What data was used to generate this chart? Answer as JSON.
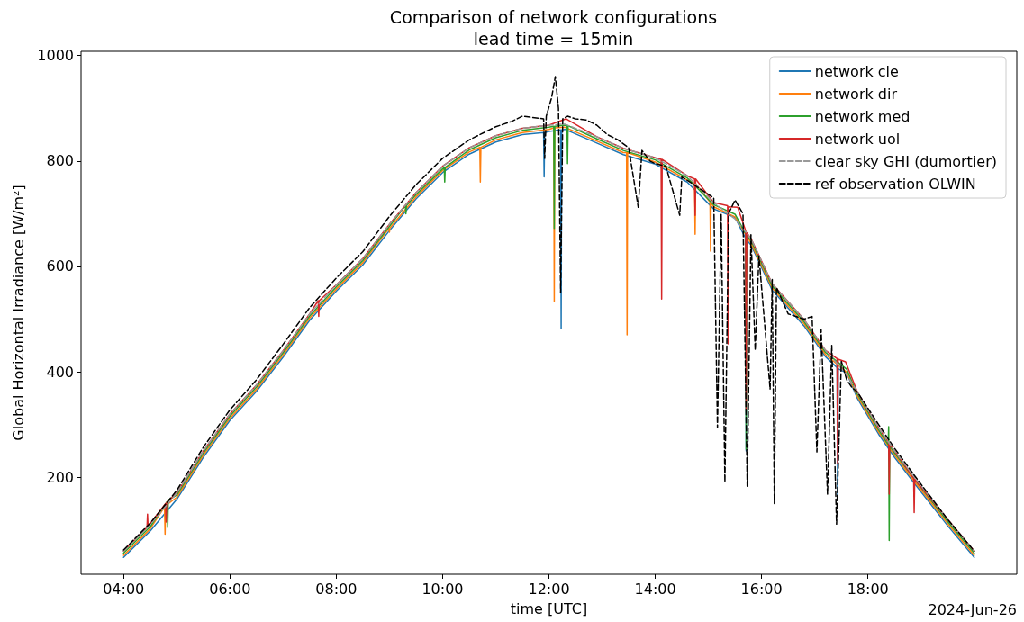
{
  "chart_data": {
    "type": "line",
    "title": "Comparison of network configurations",
    "subtitle": "lead time = 15min",
    "xlabel": "time [UTC]",
    "ylabel": "Global Horizontal Irradiance [W/m²]",
    "annotations": [
      "2024-Jun-26"
    ],
    "xlim": [
      3.2,
      20.8
    ],
    "xticks": [
      {
        "value": 4,
        "label": "04:00"
      },
      {
        "value": 6,
        "label": "06:00"
      },
      {
        "value": 8,
        "label": "08:00"
      },
      {
        "value": 10,
        "label": "10:00"
      },
      {
        "value": 12,
        "label": "12:00"
      },
      {
        "value": 14,
        "label": "14:00"
      },
      {
        "value": 16,
        "label": "16:00"
      },
      {
        "value": 18,
        "label": "18:00"
      }
    ],
    "ylim": [
      16,
      1008
    ],
    "yticks": [
      200,
      400,
      600,
      800,
      1000
    ],
    "grid": false,
    "legend": "top right",
    "marker": "none",
    "series": [
      {
        "name": "network cle",
        "color": "#1f77b4",
        "line_style": "solid",
        "x": [
          4.0,
          4.5,
          5.0,
          5.5,
          6.0,
          6.5,
          7.0,
          7.5,
          8.0,
          8.5,
          9.0,
          9.5,
          10.0,
          10.5,
          11.0,
          11.5,
          11.9,
          11.91,
          11.92,
          12.0,
          12.22,
          12.23,
          12.24,
          12.3,
          12.9,
          13.4,
          14.0,
          14.6,
          15.1,
          15.5,
          15.7,
          15.71,
          15.72,
          15.8,
          16.2,
          16.8,
          17.2,
          17.42,
          17.43,
          17.44,
          17.6,
          17.8,
          18.2,
          18.5,
          18.9,
          19.5,
          20.0
        ],
        "values": [
          48,
          98,
          158,
          238,
          308,
          363,
          428,
          498,
          553,
          603,
          668,
          728,
          778,
          813,
          836,
          850,
          854,
          770,
          854,
          856,
          859,
          482,
          859,
          860,
          834,
          812,
          794,
          760,
          709,
          693,
          653,
          250,
          650,
          641,
          555,
          487,
          429,
          408,
          162,
          406,
          398,
          350,
          282,
          238,
          185,
          108,
          48
        ]
      },
      {
        "name": "network dir",
        "color": "#ff7f0e",
        "line_style": "solid",
        "x": [
          4.0,
          4.5,
          4.77,
          4.78,
          4.79,
          5.0,
          5.5,
          6.0,
          6.5,
          7.0,
          7.5,
          8.0,
          8.5,
          8.99,
          9.0,
          9.01,
          9.5,
          10.0,
          10.5,
          10.7,
          10.71,
          10.72,
          11.0,
          11.5,
          12.0,
          12.09,
          12.1,
          12.11,
          12.3,
          12.9,
          13.4,
          13.46,
          13.47,
          13.48,
          14.0,
          14.6,
          14.74,
          14.75,
          14.76,
          15.03,
          15.04,
          15.05,
          15.1,
          15.5,
          15.8,
          16.2,
          16.8,
          17.2,
          17.6,
          17.8,
          18.2,
          18.5,
          18.9,
          19.5,
          20.0
        ],
        "values": [
          52,
          102,
          144,
          92,
          146,
          162,
          242,
          312,
          367,
          432,
          502,
          557,
          607,
          672,
          665,
          673,
          732,
          782,
          817,
          826,
          760,
          826,
          840,
          854,
          860,
          863,
          533,
          863,
          864,
          838,
          816,
          816,
          470,
          816,
          798,
          764,
          758,
          661,
          757,
          722,
          629,
          721,
          713,
          694,
          644,
          559,
          491,
          433,
          399,
          354,
          286,
          242,
          189,
          112,
          52
        ]
      },
      {
        "name": "network med",
        "color": "#2ca02c",
        "line_style": "solid",
        "x": [
          4.0,
          4.5,
          4.82,
          4.83,
          4.84,
          5.0,
          5.5,
          6.0,
          6.5,
          7.0,
          7.5,
          8.0,
          8.5,
          9.0,
          9.3,
          9.31,
          9.32,
          9.5,
          10.03,
          10.04,
          10.05,
          10.5,
          11.0,
          11.5,
          12.0,
          12.09,
          12.1,
          12.11,
          12.3,
          12.34,
          12.35,
          12.36,
          12.9,
          13.4,
          14.0,
          14.6,
          15.1,
          15.5,
          15.7,
          15.71,
          15.72,
          15.8,
          16.2,
          16.8,
          17.2,
          17.6,
          17.8,
          18.2,
          18.38,
          18.39,
          18.4,
          18.41,
          18.5,
          18.9,
          19.5,
          20.0
        ],
        "values": [
          56,
          106,
          154,
          105,
          157,
          166,
          246,
          316,
          371,
          436,
          506,
          561,
          611,
          676,
          715,
          700,
          715,
          736,
          788,
          760,
          788,
          821,
          844,
          858,
          864,
          866,
          672,
          866,
          868,
          867,
          795,
          867,
          842,
          820,
          802,
          768,
          717,
          699,
          662,
          253,
          659,
          649,
          563,
          495,
          437,
          405,
          358,
          290,
          262,
          296,
          80,
          259,
          246,
          193,
          116,
          56
        ]
      },
      {
        "name": "network uol",
        "color": "#d62728",
        "line_style": "solid",
        "x": [
          4.0,
          4.44,
          4.45,
          4.46,
          4.79,
          4.8,
          4.81,
          5.0,
          5.5,
          6.0,
          6.5,
          7.0,
          7.5,
          7.66,
          7.67,
          7.68,
          8.0,
          8.5,
          9.0,
          9.5,
          10.0,
          10.5,
          11.0,
          11.5,
          12.0,
          12.32,
          12.9,
          13.4,
          14.0,
          14.11,
          14.12,
          14.13,
          14.6,
          14.74,
          14.75,
          14.76,
          15.1,
          15.36,
          15.37,
          15.38,
          15.55,
          15.7,
          15.71,
          15.72,
          15.8,
          16.2,
          16.8,
          17.2,
          17.42,
          17.43,
          17.44,
          17.58,
          17.8,
          18.2,
          18.39,
          18.4,
          18.41,
          18.86,
          18.87,
          18.88,
          19.5,
          20.0
        ],
        "values": [
          60,
          105,
          130,
          107,
          150,
          115,
          152,
          170,
          250,
          320,
          375,
          440,
          510,
          535,
          505,
          535,
          565,
          615,
          680,
          740,
          790,
          825,
          848,
          862,
          868,
          880,
          846,
          824,
          806,
          803,
          538,
          803,
          772,
          766,
          697,
          766,
          721,
          715,
          453,
          713,
          712,
          668,
          328,
          664,
          653,
          567,
          499,
          441,
          425,
          226,
          424,
          419,
          362,
          294,
          265,
          168,
          263,
          198,
          133,
          196,
          120,
          60
        ]
      },
      {
        "name": "clear sky GHI (dumortier)",
        "color": "#999999",
        "line_style": "dashed",
        "x": [
          4.0,
          4.5,
          5.0,
          5.5,
          6.0,
          6.5,
          7.0,
          7.5,
          8.0,
          8.5,
          9.0,
          9.5,
          10.0,
          10.5,
          11.0,
          11.5,
          12.0,
          12.3,
          12.9,
          13.4,
          14.0,
          14.6,
          15.1,
          15.5,
          15.8,
          16.2,
          16.8,
          17.2,
          17.6,
          17.8,
          18.2,
          18.5,
          18.9,
          19.5,
          20.0
        ],
        "values": [
          60,
          110,
          170,
          250,
          320,
          375,
          440,
          510,
          565,
          615,
          680,
          740,
          790,
          825,
          848,
          862,
          868,
          870,
          846,
          824,
          806,
          772,
          721,
          690,
          653,
          567,
          499,
          441,
          395,
          362,
          294,
          250,
          197,
          120,
          60
        ]
      },
      {
        "name": "ref observation OLWIN",
        "color": "#000000",
        "line_style": "dashed",
        "x": [
          4.0,
          4.5,
          5.0,
          5.5,
          6.0,
          6.5,
          7.0,
          7.5,
          8.0,
          8.5,
          9.0,
          9.5,
          10.0,
          10.5,
          11.0,
          11.3,
          11.5,
          11.9,
          11.92,
          11.95,
          12.05,
          12.12,
          12.18,
          12.22,
          12.26,
          12.35,
          12.5,
          12.7,
          12.9,
          13.1,
          13.3,
          13.5,
          13.68,
          13.75,
          13.9,
          14.0,
          14.2,
          14.46,
          14.5,
          14.8,
          15.1,
          15.17,
          15.24,
          15.31,
          15.38,
          15.5,
          15.65,
          15.73,
          15.8,
          15.88,
          15.95,
          16.16,
          16.2,
          16.24,
          16.28,
          16.5,
          16.8,
          16.95,
          17.04,
          17.12,
          17.24,
          17.32,
          17.41,
          17.5,
          17.6,
          17.7,
          17.8,
          18.2,
          18.5,
          18.9,
          19.5,
          20.0
        ],
        "values": [
          62,
          113,
          175,
          257,
          328,
          385,
          452,
          522,
          578,
          628,
          695,
          755,
          805,
          840,
          865,
          875,
          885,
          880,
          805,
          885,
          920,
          960,
          900,
          550,
          880,
          885,
          880,
          878,
          868,
          850,
          840,
          825,
          712,
          820,
          800,
          795,
          790,
          697,
          770,
          750,
          730,
          294,
          700,
          191,
          700,
          726,
          700,
          183,
          660,
          441,
          620,
          367,
          575,
          150,
          560,
          510,
          500,
          505,
          248,
          480,
          168,
          450,
          111,
          420,
          385,
          370,
          362,
          300,
          255,
          200,
          120,
          60
        ]
      }
    ]
  }
}
